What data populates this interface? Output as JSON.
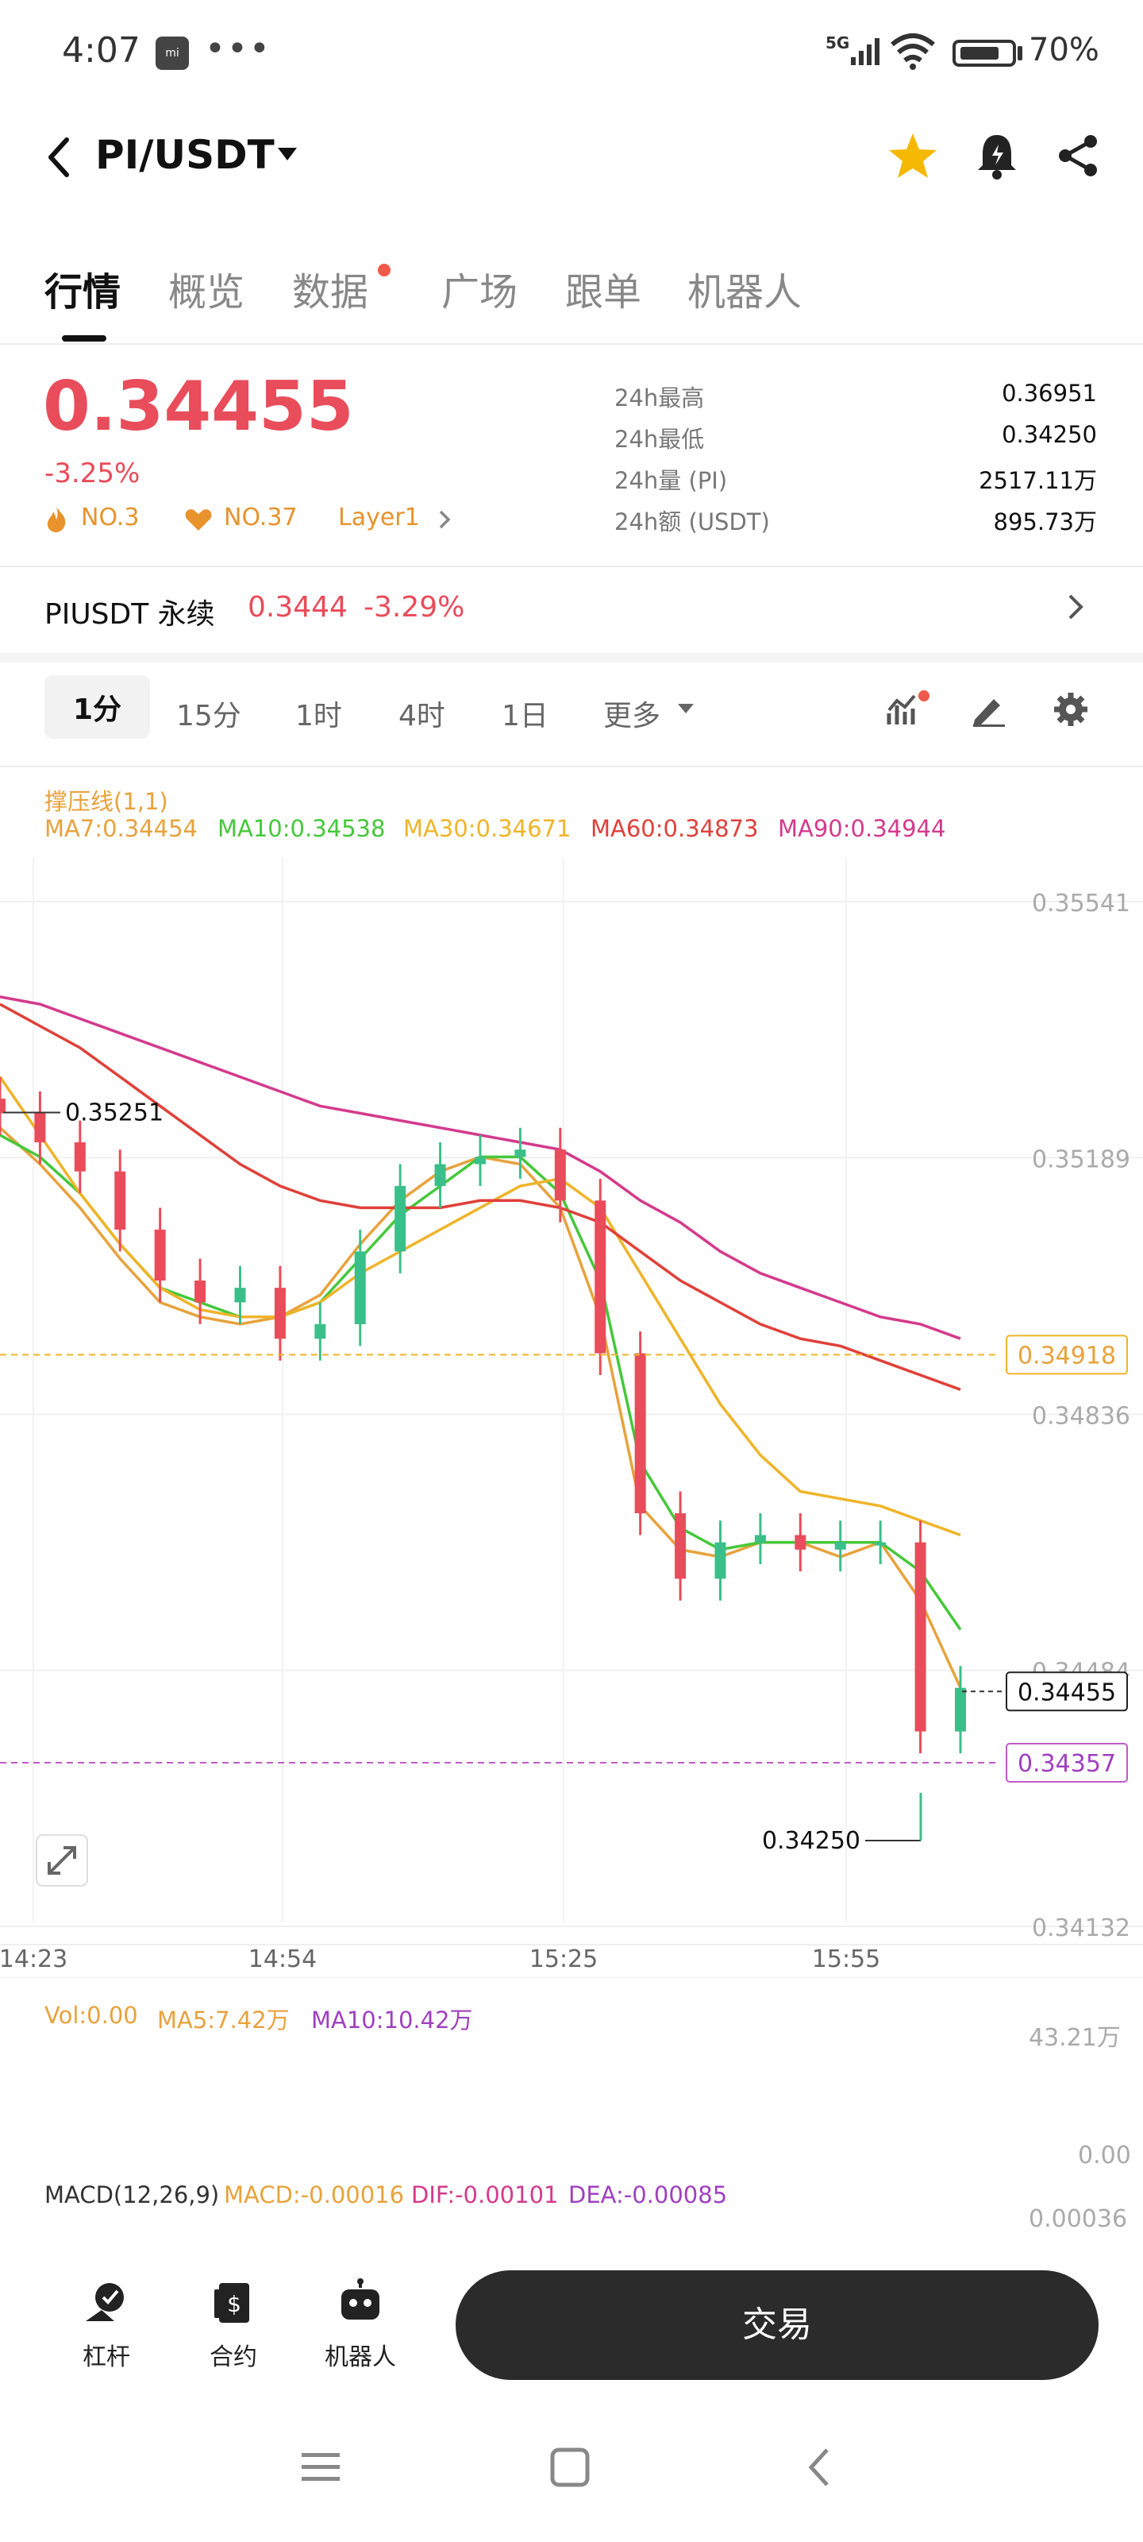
{
  "status_bar": {
    "time": "4:07",
    "signal": "5G",
    "battery": "70%",
    "app_icon": "mi",
    "more": "•••"
  },
  "header": {
    "pair": "PI/USDT",
    "icons": [
      "back-icon",
      "star-icon",
      "bell-icon",
      "share-icon"
    ]
  },
  "tabs": [
    {
      "label": "行情",
      "active": true
    },
    {
      "label": "概览"
    },
    {
      "label": "数据",
      "dot": true
    },
    {
      "label": "广场"
    },
    {
      "label": "跟单"
    },
    {
      "label": "机器人"
    }
  ],
  "ticker": {
    "price": "0.34455",
    "change": "-3.25%",
    "tags": [
      "NO.3",
      "NO.37",
      "Layer1"
    ],
    "stats": [
      {
        "label": "24h最高",
        "value": "0.36951"
      },
      {
        "label": "24h最低",
        "value": "0.34250"
      },
      {
        "label": "24h量 (PI)",
        "value": "2517.11万"
      },
      {
        "label": "24h额 (USDT)",
        "value": "895.73万"
      }
    ]
  },
  "perp": {
    "name": "PIUSDT 永续",
    "price": "0.3444",
    "change": "-3.29%"
  },
  "intervals": {
    "items": [
      "1分",
      "15分",
      "1时",
      "4时",
      "1日",
      "更多"
    ],
    "active": "1分"
  },
  "indicators": {
    "support_label": "撑压线(1,1)",
    "ma": [
      {
        "text": "MA7:0.34454",
        "color": "#e8a23c"
      },
      {
        "text": "MA10:0.34538",
        "color": "#45c83a"
      },
      {
        "text": "MA30:0.34671",
        "color": "#f0b429"
      },
      {
        "text": "MA60:0.34873",
        "color": "#e0403a"
      },
      {
        "text": "MA90:0.34944",
        "color": "#d43a8c"
      }
    ],
    "vol_legend": [
      {
        "text": "Vol:0.00",
        "color": "#e8a23c"
      },
      {
        "text": "MA5:7.42万",
        "color": "#e8a23c"
      },
      {
        "text": "MA10:10.42万",
        "color": "#a040c0"
      }
    ],
    "macd_legend": [
      {
        "text": "MACD(12,26,9)",
        "color": "#333333"
      },
      {
        "text": "MACD:-0.00016",
        "color": "#e8a23c"
      },
      {
        "text": "DIF:-0.00101",
        "color": "#d43a8c"
      },
      {
        "text": "DEA:-0.00085",
        "color": "#a040c0"
      }
    ]
  },
  "chart_data": {
    "type": "line",
    "y_axis_ticks": [
      "0.35541",
      "0.35189",
      "0.34836",
      "0.34484",
      "0.34132"
    ],
    "x_axis_ticks": [
      "14:23",
      "14:54",
      "15:25",
      "15:55"
    ],
    "ylim": [
      0.34132,
      0.35541
    ],
    "markers": {
      "high_label": "0.35251",
      "low_label": "0.34250",
      "current_price": "0.34455",
      "line_orange": "0.34918",
      "line_purple": "0.34357"
    },
    "volume_axis": {
      "top": "43.21万",
      "bottom": "0.00"
    },
    "macd_axis_top": "0.00036",
    "series": [
      {
        "name": "MA7",
        "color": "#e8a23c",
        "values": [
          0.3523,
          0.3518,
          0.3512,
          0.3505,
          0.3499,
          0.3497,
          0.3496,
          0.3497,
          0.35,
          0.3507,
          0.3513,
          0.3517,
          0.3519,
          0.3518,
          0.3512,
          0.3497,
          0.3471,
          0.3465,
          0.3464,
          0.3466,
          0.3466,
          0.3464,
          0.3466,
          0.3458,
          0.3446
        ]
      },
      {
        "name": "MA10",
        "color": "#45c83a",
        "values": [
          0.3522,
          0.3519,
          0.3514,
          0.3507,
          0.3501,
          0.3499,
          0.3497,
          0.3497,
          0.3499,
          0.3505,
          0.3511,
          0.3515,
          0.3519,
          0.3519,
          0.3514,
          0.3502,
          0.3477,
          0.3468,
          0.3465,
          0.3466,
          0.3466,
          0.3466,
          0.3466,
          0.3462,
          0.3454
        ]
      },
      {
        "name": "MA30",
        "color": "#f0b429",
        "values": [
          0.353,
          0.3522,
          0.3514,
          0.3507,
          0.3501,
          0.3498,
          0.3497,
          0.3497,
          0.3499,
          0.3503,
          0.3506,
          0.3509,
          0.3512,
          0.3515,
          0.3516,
          0.3512,
          0.3503,
          0.3494,
          0.3485,
          0.3478,
          0.3473,
          0.3472,
          0.3471,
          0.3469,
          0.3467
        ]
      },
      {
        "name": "MA60",
        "color": "#e0403a",
        "values": [
          0.354,
          0.3537,
          0.3534,
          0.353,
          0.3526,
          0.3522,
          0.3518,
          0.3515,
          0.3513,
          0.3512,
          0.3512,
          0.3512,
          0.3513,
          0.3513,
          0.3512,
          0.351,
          0.3506,
          0.3502,
          0.3499,
          0.3496,
          0.3494,
          0.3493,
          0.3491,
          0.3489,
          0.3487
        ]
      },
      {
        "name": "MA90",
        "color": "#d43a8c",
        "values": [
          0.3541,
          0.354,
          0.3538,
          0.3536,
          0.3534,
          0.3532,
          0.353,
          0.3528,
          0.3526,
          0.3525,
          0.3524,
          0.3523,
          0.3522,
          0.3521,
          0.352,
          0.3517,
          0.3513,
          0.351,
          0.3506,
          0.3503,
          0.3501,
          0.3499,
          0.3497,
          0.3496,
          0.3494
        ]
      }
    ],
    "candles_close": [
      0.3525,
      0.3521,
      0.3517,
      0.3509,
      0.3502,
      0.3499,
      0.3501,
      0.3494,
      0.3496,
      0.3506,
      0.3515,
      0.3518,
      0.3519,
      0.352,
      0.3513,
      0.3492,
      0.347,
      0.3461,
      0.3466,
      0.3467,
      0.3465,
      0.3466,
      0.3466,
      0.344,
      0.3446
    ]
  },
  "bottom_nav": {
    "items": [
      {
        "label": "杠杆",
        "icon": "leverage-icon"
      },
      {
        "label": "合约",
        "icon": "contract-icon"
      },
      {
        "label": "机器人",
        "icon": "robot-icon"
      }
    ],
    "trade_label": "交易"
  },
  "system_nav": [
    "menu-icon",
    "home-icon",
    "back-icon"
  ]
}
